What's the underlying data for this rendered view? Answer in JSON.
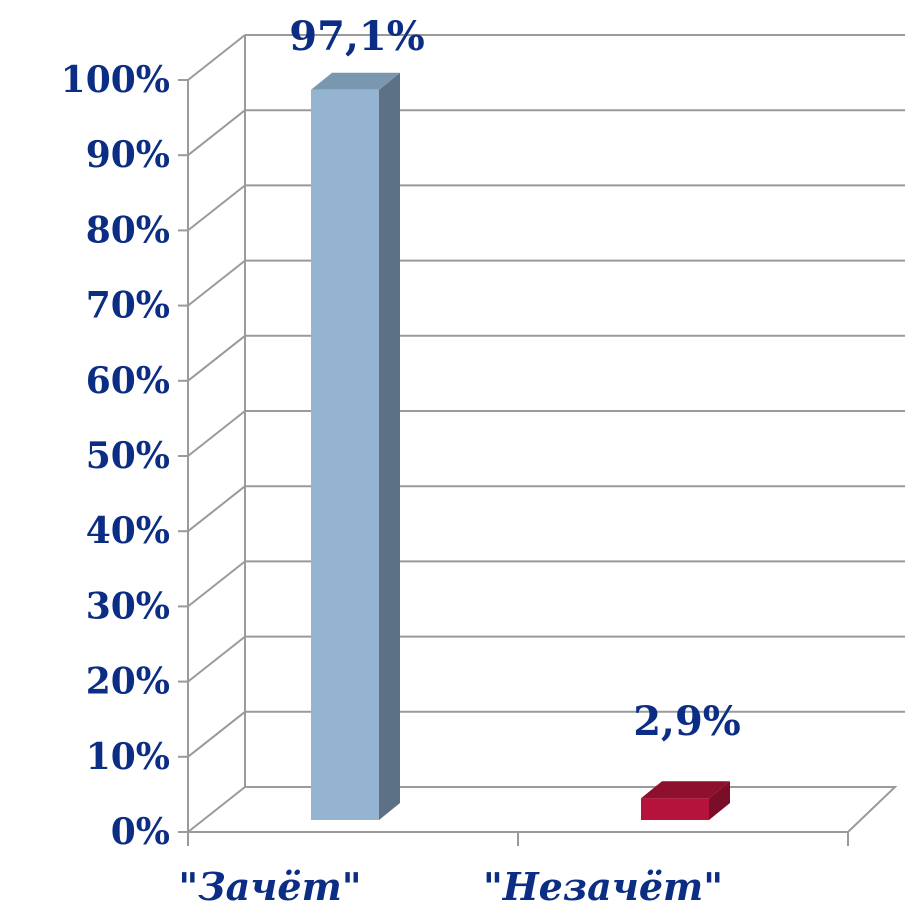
{
  "chart_data": {
    "type": "bar",
    "categories": [
      "\"Зачёт\"",
      "\"Незачёт\""
    ],
    "values": [
      97.1,
      2.9
    ],
    "data_labels": [
      "97,1%",
      "2,9%"
    ],
    "y_ticks": [
      "0%",
      "10%",
      "20%",
      "30%",
      "40%",
      "50%",
      "60%",
      "70%",
      "80%",
      "90%",
      "100%"
    ],
    "ylim": [
      0,
      100
    ],
    "grid": true,
    "style": "3d",
    "colors": {
      "bar_1_front": "#94b4d2",
      "bar_1_side": "#5c7186",
      "bar_1_top": "#7a97b0",
      "bar_2_front": "#b5133c",
      "bar_2_side": "#7a0d27",
      "bar_2_top": "#8e0f2e",
      "text": "#0b2d83",
      "grid": "#9a9a9a"
    }
  }
}
